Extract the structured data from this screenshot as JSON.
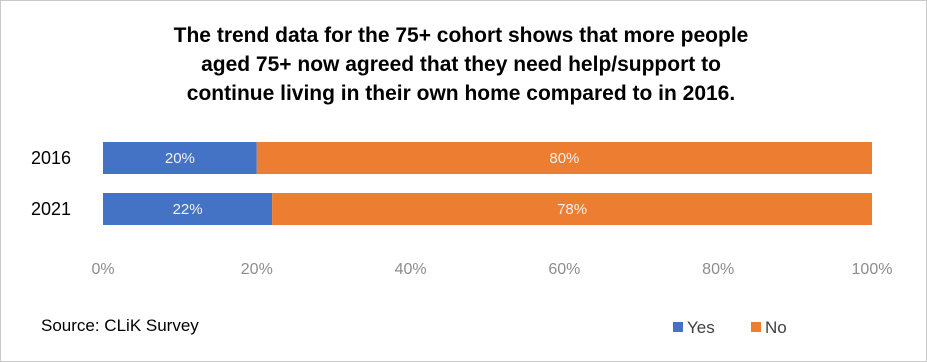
{
  "chart_data": {
    "type": "bar",
    "orientation": "horizontal",
    "stacked": true,
    "title": [
      "The trend data for the 75+ cohort shows that more people",
      "aged 75+ now agreed that they need help/support to",
      "continue living in their own home compared to in 2016."
    ],
    "categories": [
      "2016",
      "2021"
    ],
    "series": [
      {
        "name": "Yes",
        "values": [
          20,
          22
        ],
        "labels": [
          "20%",
          "22%"
        ],
        "color": "#4472c4"
      },
      {
        "name": "No",
        "values": [
          80,
          78
        ],
        "labels": [
          "80%",
          "78%"
        ],
        "color": "#ed7d31"
      }
    ],
    "xlim": [
      0,
      100
    ],
    "x_ticks": [
      "0%",
      "20%",
      "40%",
      "60%",
      "80%",
      "100%"
    ],
    "grid": false,
    "legend_position": "bottom-right"
  },
  "source_text": "Source: CLiK Survey",
  "colors": {
    "yes": "#4472c4",
    "no": "#ed7d31",
    "tick_text": "#8c8c8c",
    "data_label": "#f2f2f2"
  }
}
